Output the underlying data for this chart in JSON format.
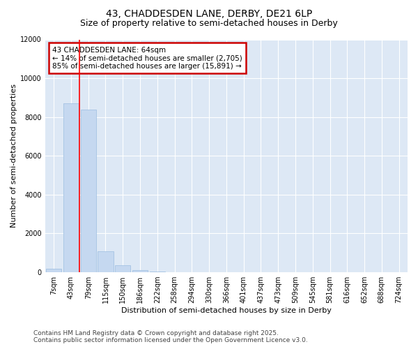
{
  "title_line1": "43, CHADDESDEN LANE, DERBY, DE21 6LP",
  "title_line2": "Size of property relative to semi-detached houses in Derby",
  "xlabel": "Distribution of semi-detached houses by size in Derby",
  "ylabel": "Number of semi-detached properties",
  "categories": [
    "7sqm",
    "43sqm",
    "79sqm",
    "115sqm",
    "150sqm",
    "186sqm",
    "222sqm",
    "258sqm",
    "294sqm",
    "330sqm",
    "366sqm",
    "401sqm",
    "437sqm",
    "473sqm",
    "509sqm",
    "545sqm",
    "581sqm",
    "616sqm",
    "652sqm",
    "688sqm",
    "724sqm"
  ],
  "values": [
    200,
    8700,
    8400,
    1100,
    350,
    100,
    50,
    0,
    0,
    0,
    0,
    0,
    0,
    0,
    0,
    0,
    0,
    0,
    0,
    0,
    0
  ],
  "bar_color": "#c5d8f0",
  "bar_edge_color": "#9bbde0",
  "redline_x": 1.5,
  "ylim": [
    0,
    12000
  ],
  "yticks": [
    0,
    2000,
    4000,
    6000,
    8000,
    10000,
    12000
  ],
  "annotation_title": "43 CHADDESDEN LANE: 64sqm",
  "annotation_line2": "← 14% of semi-detached houses are smaller (2,705)",
  "annotation_line3": "85% of semi-detached houses are larger (15,891) →",
  "annotation_box_color": "#cc0000",
  "footer_line1": "Contains HM Land Registry data © Crown copyright and database right 2025.",
  "footer_line2": "Contains public sector information licensed under the Open Government Licence v3.0.",
  "fig_bg_color": "#ffffff",
  "plot_bg_color": "#dde8f5",
  "grid_color": "#ffffff",
  "title_fontsize": 10,
  "subtitle_fontsize": 9,
  "axis_label_fontsize": 8,
  "tick_fontsize": 7,
  "annotation_fontsize": 7.5,
  "footer_fontsize": 6.5
}
